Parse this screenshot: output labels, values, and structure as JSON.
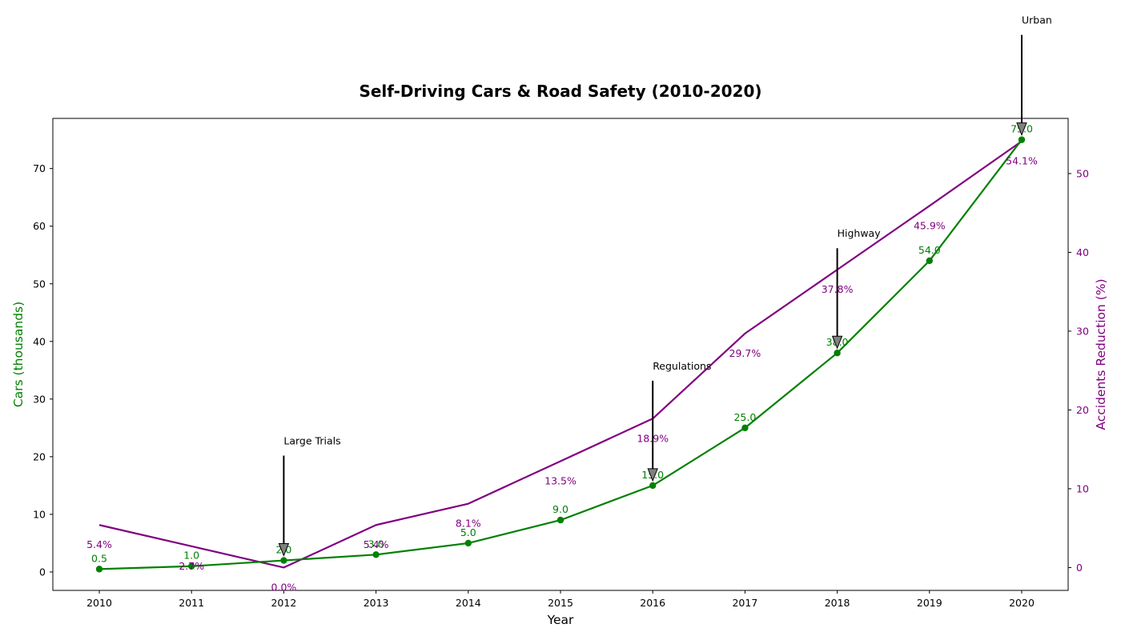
{
  "chart_data": {
    "type": "line",
    "title": "Self-Driving Cars & Road Safety (2010-2020)",
    "xlabel": "Year",
    "ylabel_left": "Cars (thousands)",
    "ylabel_right": "Accidents Reduction (%)",
    "x": [
      "2010",
      "2011",
      "2012",
      "2013",
      "2014",
      "2015",
      "2016",
      "2017",
      "2018",
      "2019",
      "2020"
    ],
    "series": [
      {
        "axis": "left",
        "color": "#008000",
        "marker": "circle",
        "values": [
          0.5,
          1.0,
          2.0,
          3.0,
          5.0,
          9.0,
          15.0,
          25.0,
          38.0,
          54.0,
          75.0
        ],
        "labels": [
          "0.5",
          "1.0",
          "2.0",
          "3.0",
          "5.0",
          "9.0",
          "15.0",
          "25.0",
          "38.0",
          "54.0",
          "75.0"
        ]
      },
      {
        "axis": "right",
        "color": "#800080",
        "marker": "none",
        "values": [
          5.4,
          2.7,
          0.0,
          5.4,
          8.1,
          13.5,
          18.9,
          29.7,
          37.8,
          45.9,
          54.1
        ],
        "labels": [
          "5.4%",
          "2.7%",
          "0.0%",
          "5.4%",
          "8.1%",
          "13.5%",
          "18.9%",
          "29.7%",
          "37.8%",
          "45.9%",
          "54.1%"
        ]
      }
    ],
    "ylim_left": [
      -3.2,
      78.7
    ],
    "ylim_right": [
      -2.9,
      57.0
    ],
    "yticks_left": [
      0,
      10,
      20,
      30,
      40,
      50,
      60,
      70
    ],
    "yticks_right": [
      0,
      10,
      20,
      30,
      40,
      50
    ],
    "grid": false,
    "annotations": [
      {
        "text": "Large Trials",
        "x": "2012",
        "y": 2.0
      },
      {
        "text": "Regulations",
        "x": "2016",
        "y": 15.0
      },
      {
        "text": "Highway",
        "x": "2018",
        "y": 38.0
      },
      {
        "text": "Urban",
        "x": "2020",
        "y": 75.0
      }
    ]
  }
}
